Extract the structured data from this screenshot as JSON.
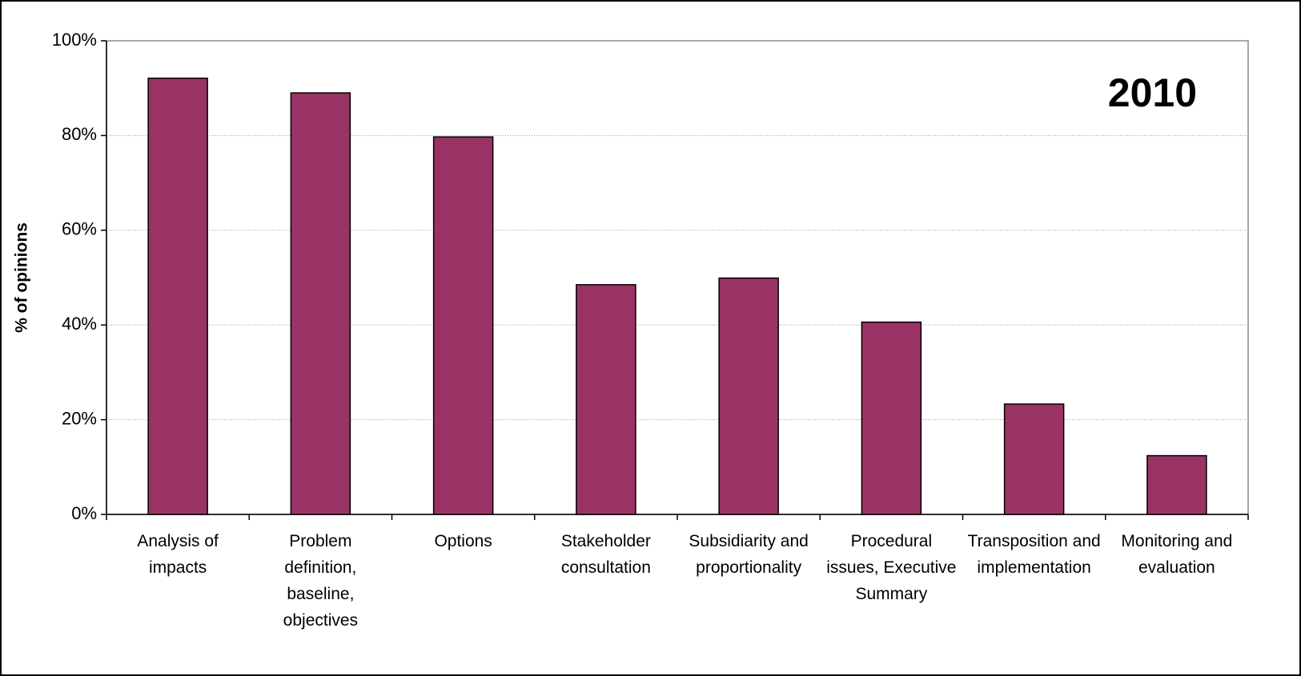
{
  "chart_data": {
    "type": "bar",
    "annotation": "2010",
    "y_label": "% of opinions",
    "categories": [
      "Analysis of impacts",
      "Problem definition, baseline, objectives",
      "Options",
      "Stakeholder consultation",
      "Subsidiarity and proportionality",
      "Procedural issues, Executive Summary",
      "Transposition and implementation",
      "Monitoring and evaluation"
    ],
    "values": [
      92.1,
      89.0,
      79.7,
      48.5,
      49.9,
      40.6,
      23.3,
      12.4
    ],
    "color": "#993366",
    "ylim": [
      0,
      100
    ],
    "yticks": [
      {
        "value": 0,
        "label": "0%"
      },
      {
        "value": 20,
        "label": "20%"
      },
      {
        "value": 40,
        "label": "40%"
      },
      {
        "value": 60,
        "label": "60%"
      },
      {
        "value": 80,
        "label": "80%"
      },
      {
        "value": 100,
        "label": "100%"
      }
    ],
    "grid": true
  }
}
